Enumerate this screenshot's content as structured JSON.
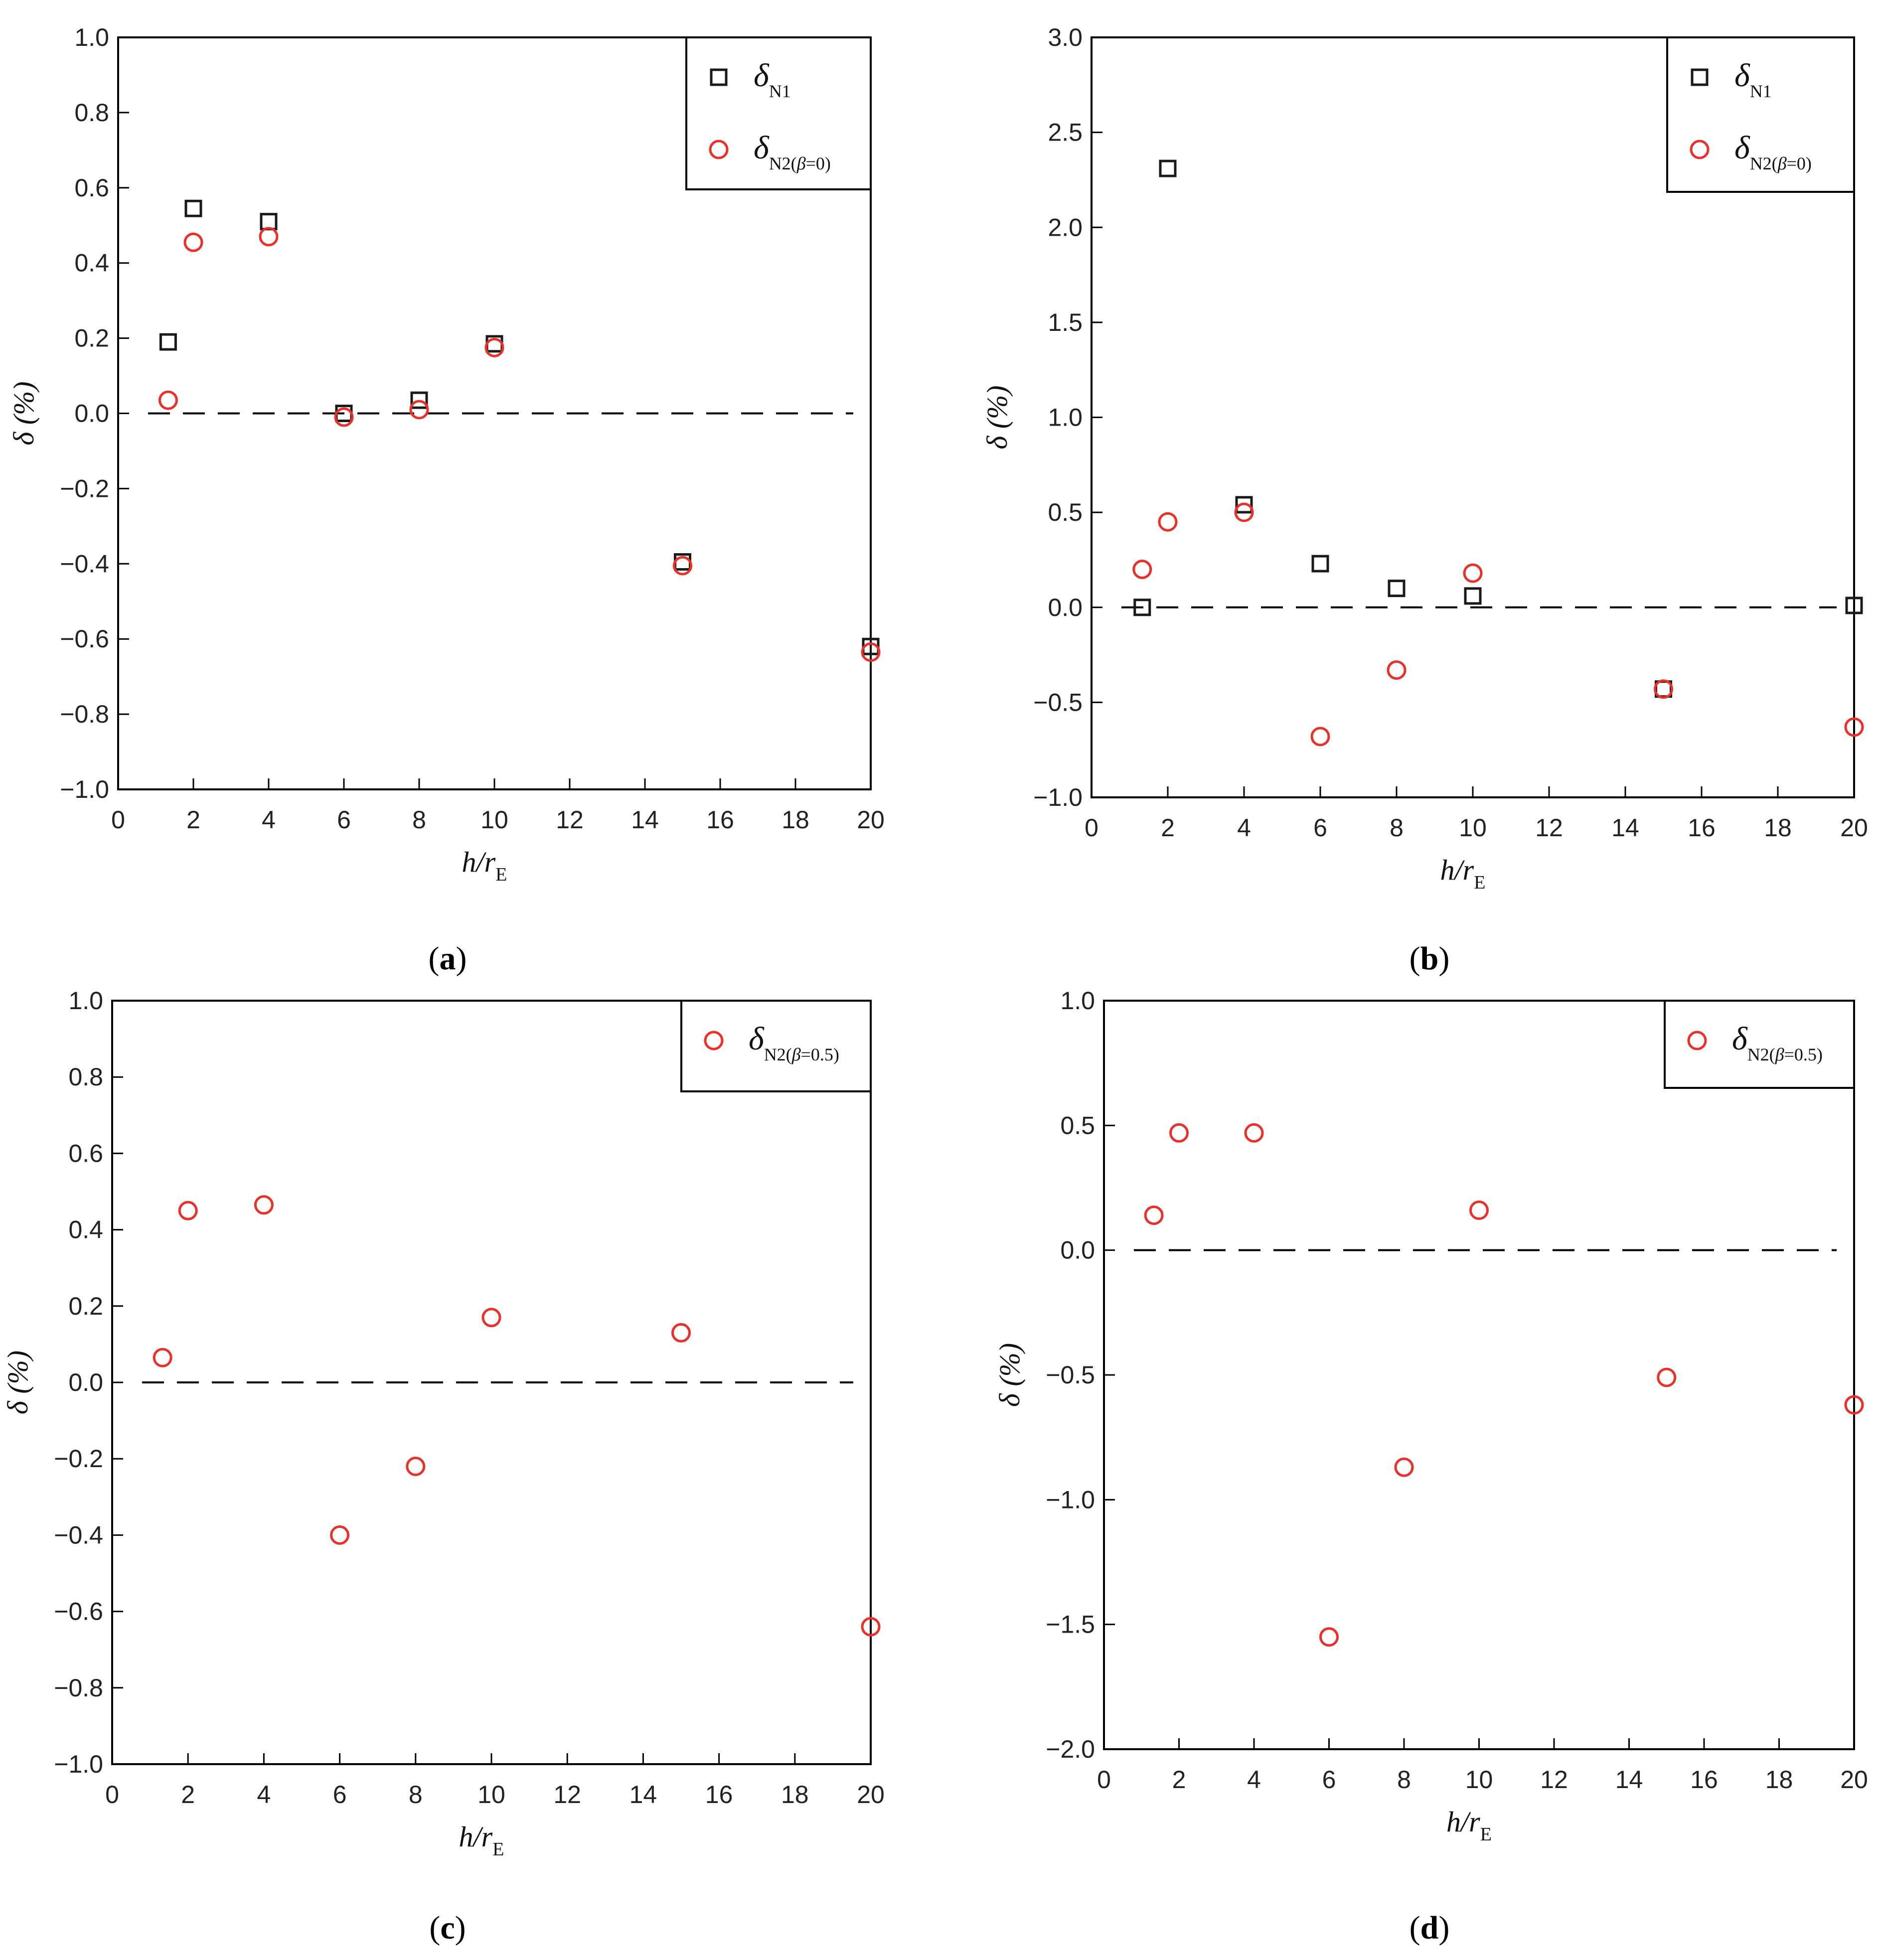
{
  "figure": {
    "xlabel_main": "h/r",
    "xlabel_sub": "E",
    "ylabel": "δ (%)",
    "colors": {
      "square": "#1a1a1a",
      "circle": "#e8312a",
      "zero_line": "#000000"
    }
  },
  "chart_data": [
    {
      "panel": "a",
      "caption": "(a)",
      "type": "scatter",
      "xlabel": "h/rE",
      "ylabel": "δ (%)",
      "xlim": [
        0,
        20
      ],
      "ylim": [
        -1.0,
        1.0
      ],
      "xticks": [
        0,
        2,
        4,
        6,
        8,
        10,
        12,
        14,
        16,
        18,
        20
      ],
      "xtick_labels": [
        "0",
        "2",
        "4",
        "6",
        "8",
        "10",
        "12",
        "14",
        "16",
        "18",
        "20"
      ],
      "yticks": [
        -1.0,
        -0.8,
        -0.6,
        -0.4,
        -0.2,
        0.0,
        0.2,
        0.4,
        0.6,
        0.8,
        1.0
      ],
      "ytick_labels": [
        "−1.0",
        "−0.8",
        "−0.6",
        "−0.4",
        "−0.2",
        "0.0",
        "0.2",
        "0.4",
        "0.6",
        "0.8",
        "1.0"
      ],
      "zero_line": true,
      "legend_position": "top-right",
      "series": [
        {
          "name": "δN1",
          "legend_main": "δ",
          "legend_sub": "N1",
          "legend_sub_italic": "",
          "legend_sub_end": "",
          "marker": "square",
          "x": [
            1.33,
            2,
            4,
            6,
            8,
            10,
            15,
            20
          ],
          "y": [
            0.19,
            0.545,
            0.51,
            0.0,
            0.035,
            0.185,
            -0.395,
            -0.62
          ]
        },
        {
          "name": "δN2(β=0)",
          "legend_main": "δ",
          "legend_sub": "N2(",
          "legend_sub_italic": "β",
          "legend_sub_end": "=0)",
          "marker": "circle",
          "x": [
            1.33,
            2,
            4,
            6,
            8,
            10,
            15,
            20
          ],
          "y": [
            0.035,
            0.455,
            0.47,
            -0.01,
            0.01,
            0.175,
            -0.405,
            -0.635
          ]
        }
      ]
    },
    {
      "panel": "b",
      "caption": "(b)",
      "type": "scatter",
      "xlabel": "h/rE",
      "ylabel": "δ (%)",
      "xlim": [
        0,
        20
      ],
      "ylim": [
        -1.0,
        3.0
      ],
      "xticks": [
        0,
        2,
        4,
        6,
        8,
        10,
        12,
        14,
        16,
        18,
        20
      ],
      "xtick_labels": [
        "0",
        "2",
        "4",
        "6",
        "8",
        "10",
        "12",
        "14",
        "16",
        "18",
        "20"
      ],
      "yticks": [
        -1.0,
        -0.5,
        0.0,
        0.5,
        1.0,
        1.5,
        2.0,
        2.5,
        3.0
      ],
      "ytick_labels": [
        "−1.0",
        "−0.5",
        "0.0",
        "0.5",
        "1.0",
        "1.5",
        "2.0",
        "2.5",
        "3.0"
      ],
      "zero_line": true,
      "legend_position": "top-right",
      "series": [
        {
          "name": "δN1",
          "legend_main": "δ",
          "legend_sub": "N1",
          "legend_sub_italic": "",
          "legend_sub_end": "",
          "marker": "square",
          "x": [
            1.33,
            2,
            4,
            6,
            8,
            10,
            15,
            20
          ],
          "y": [
            0.0,
            2.31,
            0.54,
            0.23,
            0.1,
            0.06,
            -0.43,
            0.01
          ]
        },
        {
          "name": "δN2(β=0)",
          "legend_main": "δ",
          "legend_sub": "N2(",
          "legend_sub_italic": "β",
          "legend_sub_end": "=0)",
          "marker": "circle",
          "x": [
            1.33,
            2,
            4,
            6,
            8,
            10,
            15,
            20
          ],
          "y": [
            0.2,
            0.45,
            0.5,
            -0.68,
            -0.33,
            0.18,
            -0.43,
            -0.63
          ]
        }
      ]
    },
    {
      "panel": "c",
      "caption": "(c)",
      "type": "scatter",
      "xlabel": "h/rE",
      "ylabel": "δ (%)",
      "xlim": [
        0,
        20
      ],
      "ylim": [
        -1.0,
        1.0
      ],
      "xticks": [
        0,
        2,
        4,
        6,
        8,
        10,
        12,
        14,
        16,
        18,
        20
      ],
      "xtick_labels": [
        "0",
        "2",
        "4",
        "6",
        "8",
        "10",
        "12",
        "14",
        "16",
        "18",
        "20"
      ],
      "yticks": [
        -1.0,
        -0.8,
        -0.6,
        -0.4,
        -0.2,
        0.0,
        0.2,
        0.4,
        0.6,
        0.8,
        1.0
      ],
      "ytick_labels": [
        "−1.0",
        "−0.8",
        "−0.6",
        "−0.4",
        "−0.2",
        "0.0",
        "0.2",
        "0.4",
        "0.6",
        "0.8",
        "1.0"
      ],
      "zero_line": true,
      "legend_position": "top-right",
      "series": [
        {
          "name": "δN2(β=0.5)",
          "legend_main": "δ",
          "legend_sub": "N2(",
          "legend_sub_italic": "β",
          "legend_sub_end": "=0.5)",
          "marker": "circle",
          "x": [
            1.33,
            2,
            4,
            6,
            8,
            10,
            15,
            20
          ],
          "y": [
            0.065,
            0.45,
            0.465,
            -0.4,
            -0.22,
            0.17,
            0.13,
            -0.64
          ]
        }
      ]
    },
    {
      "panel": "d",
      "caption": "(d)",
      "type": "scatter",
      "xlabel": "h/rE",
      "ylabel": "δ (%)",
      "xlim": [
        0,
        20
      ],
      "ylim": [
        -2.0,
        1.0
      ],
      "xticks": [
        0,
        2,
        4,
        6,
        8,
        10,
        12,
        14,
        16,
        18,
        20
      ],
      "xtick_labels": [
        "0",
        "2",
        "4",
        "6",
        "8",
        "10",
        "12",
        "14",
        "16",
        "18",
        "20"
      ],
      "yticks": [
        -2.0,
        -1.5,
        -1.0,
        -0.5,
        0.0,
        0.5,
        1.0
      ],
      "ytick_labels": [
        "−2.0",
        "−1.5",
        "−1.0",
        "−0.5",
        "0.0",
        "0.5",
        "1.0"
      ],
      "zero_line": true,
      "legend_position": "top-right",
      "series": [
        {
          "name": "δN2(β=0.5)",
          "legend_main": "δ",
          "legend_sub": "N2(",
          "legend_sub_italic": "β",
          "legend_sub_end": "=0.5)",
          "marker": "circle",
          "x": [
            1.33,
            2,
            4,
            6,
            8,
            10,
            15,
            20
          ],
          "y": [
            0.14,
            0.47,
            0.47,
            -1.55,
            -0.87,
            0.16,
            -0.51,
            -0.62
          ]
        }
      ]
    }
  ]
}
